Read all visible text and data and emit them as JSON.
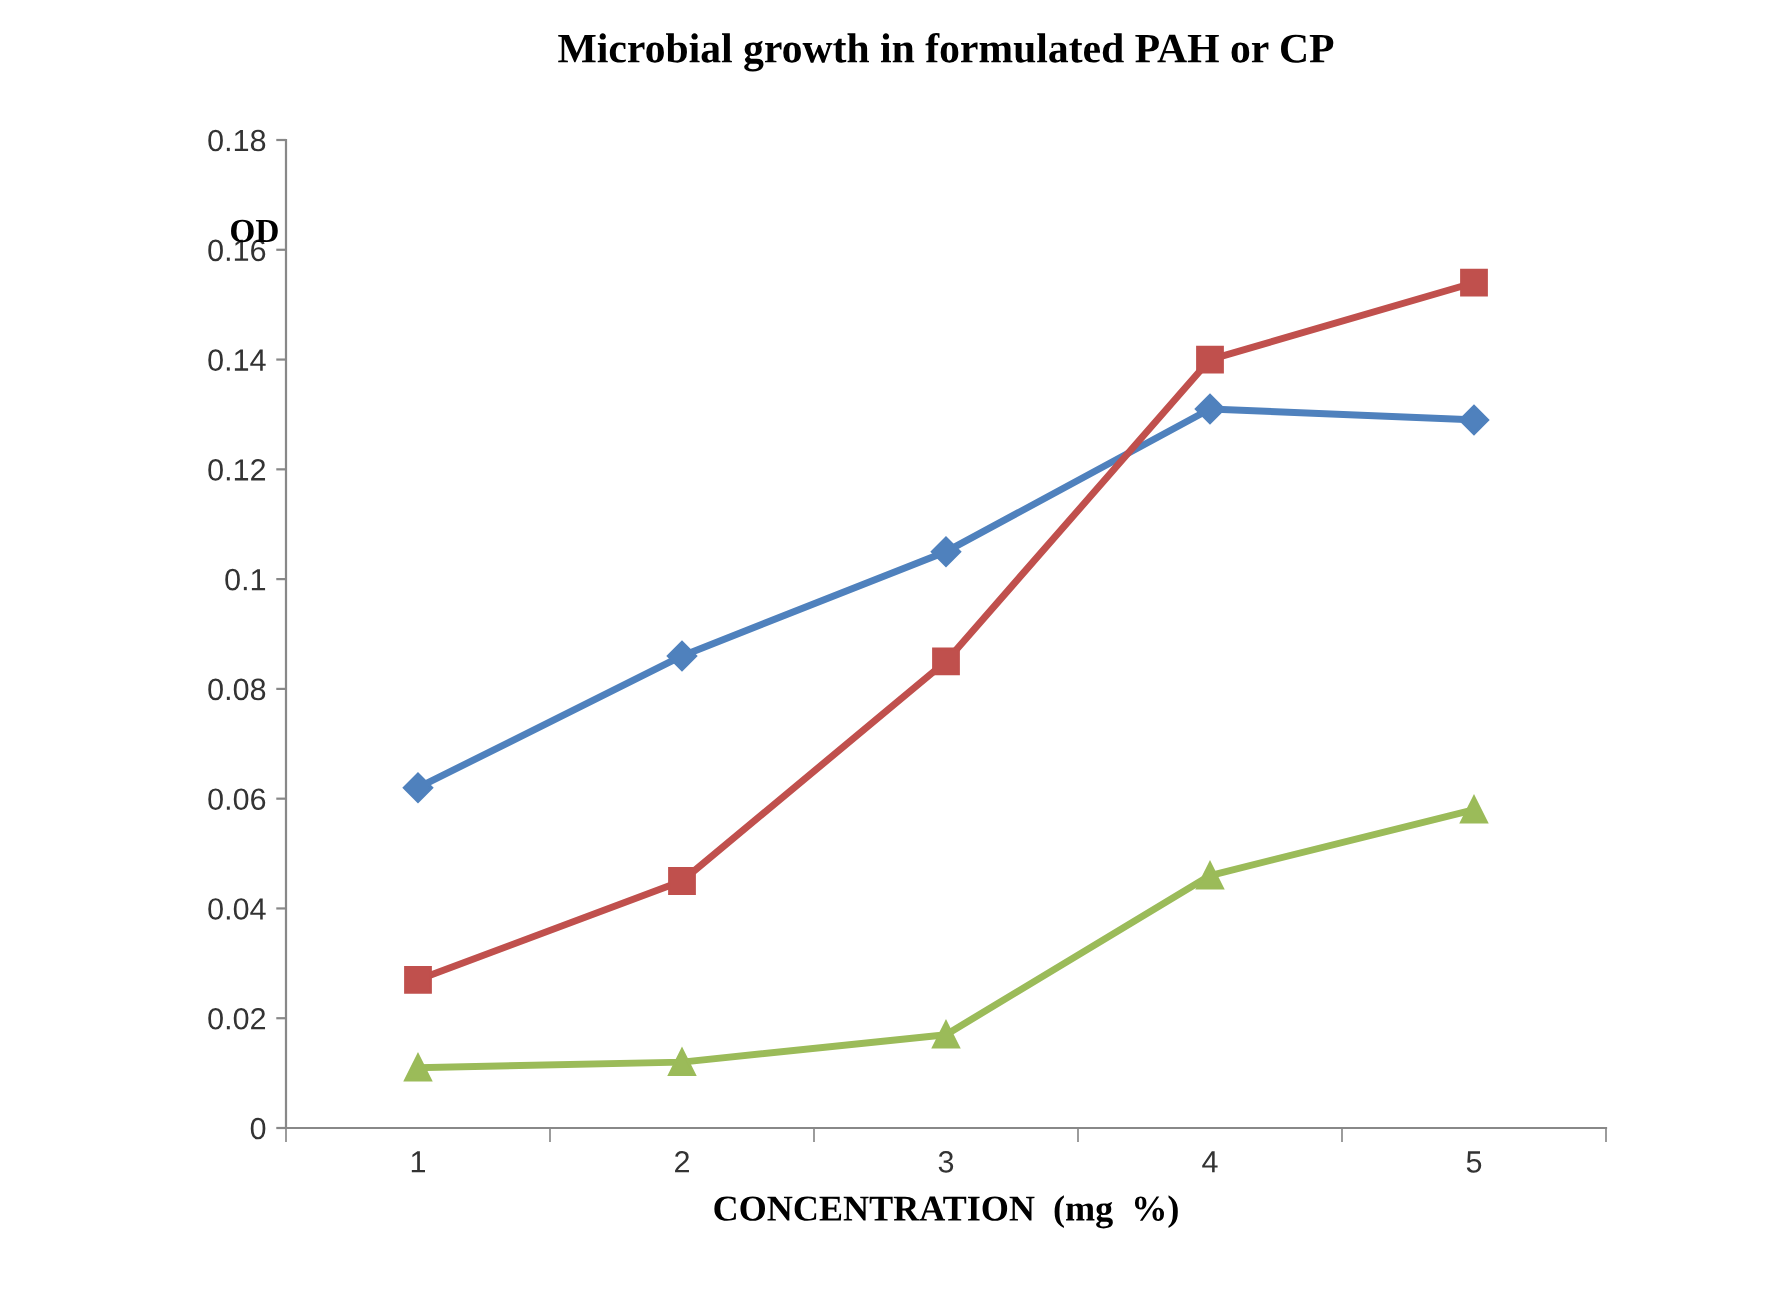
{
  "chart_data": {
    "type": "line",
    "title": "Microbial growth in formulated PAH or CP",
    "xlabel": "CONCENTRATION  (mg  %)",
    "ylabel": "OD",
    "categories": [
      "1",
      "2",
      "3",
      "4",
      "5"
    ],
    "series": [
      {
        "color": "#4f81bd",
        "marker": "diamond",
        "values": [
          0.062,
          0.086,
          0.105,
          0.131,
          0.129
        ]
      },
      {
        "color": "#c0504d",
        "marker": "square",
        "values": [
          0.027,
          0.045,
          0.085,
          0.14,
          0.154
        ]
      },
      {
        "color": "#9bbb59",
        "marker": "triangle",
        "values": [
          0.011,
          0.012,
          0.017,
          0.046,
          0.058
        ]
      }
    ],
    "ylim": [
      0,
      0.18
    ],
    "yticks": [
      0,
      0.02,
      0.04,
      0.06,
      0.08,
      0.1,
      0.12,
      0.14,
      0.16,
      0.18
    ],
    "grid": false,
    "legend": false,
    "line_style": "solid"
  }
}
